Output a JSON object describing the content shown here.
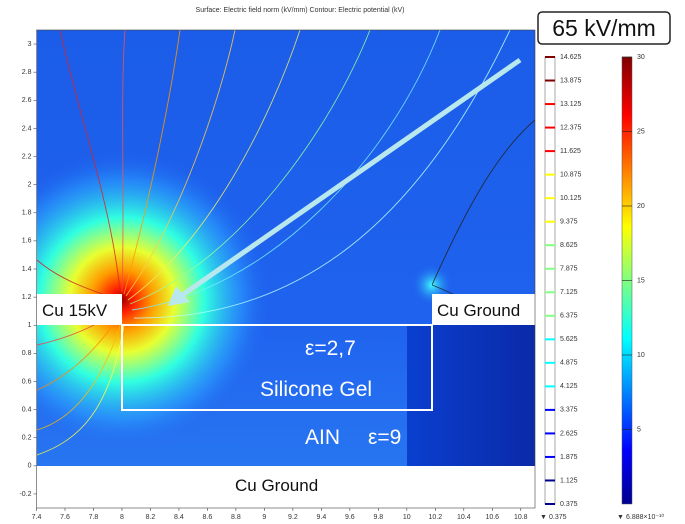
{
  "chart_data": {
    "type": "heatmap",
    "title": "Surface: Electric field norm (kV/mm)  Contour: Electric potential (kV)",
    "xlim": [
      7.4,
      10.9
    ],
    "xticks": [
      7.4,
      7.6,
      7.8,
      8,
      8.2,
      8.4,
      8.6,
      8.8,
      9,
      9.2,
      9.4,
      9.6,
      9.8,
      10,
      10.2,
      10.4,
      10.6,
      10.8
    ],
    "ylim": [
      -0.3,
      3.1
    ],
    "yticks": [
      -0.2,
      0,
      0.2,
      0.4,
      0.6,
      0.8,
      1,
      1.2,
      1.4,
      1.6,
      1.8,
      2,
      2.2,
      2.4,
      2.6,
      2.8,
      3
    ],
    "annotations": [
      "65 kV/mm",
      "Cu 15kV",
      "Cu Ground",
      "ε=2,7",
      "Silicone Gel",
      "AIN",
      "ε=9",
      "Cu Ground"
    ],
    "colorbars": [
      {
        "name": "contour",
        "lim": [
          0.375,
          14.625
        ],
        "ticks": [
          14.625,
          13.875,
          13.125,
          12.375,
          11.625,
          10.875,
          10.125,
          9.375,
          8.625,
          7.875,
          7.125,
          6.375,
          5.625,
          4.875,
          4.125,
          3.375,
          2.625,
          1.875,
          1.125,
          0.375
        ],
        "min": 0.375
      },
      {
        "name": "surface",
        "lim": [
          0,
          30
        ],
        "ticks": [
          5,
          10,
          15,
          20,
          25,
          30
        ],
        "min": {
          "value": 6.888e-10,
          "label": "6.888×10⁻¹⁰"
        }
      }
    ]
  }
}
